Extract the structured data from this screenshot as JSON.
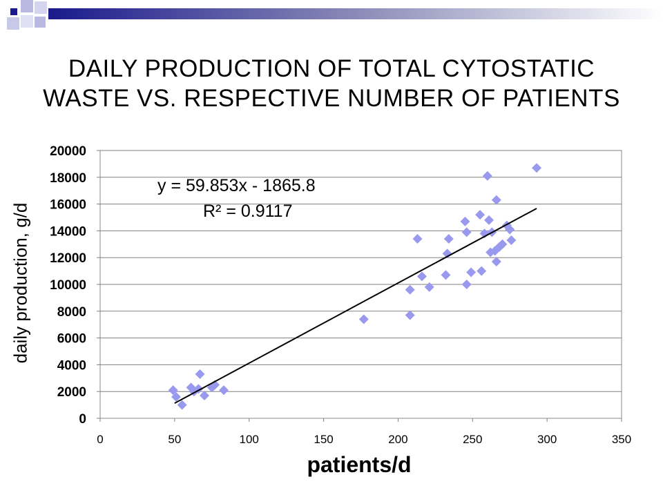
{
  "slide": {
    "title_line1": "DAILY PRODUCTION OF TOTAL CYTOSTATIC",
    "title_line2": "WASTE VS. RESPECTIVE NUMBER OF PATIENTS",
    "accent_color": "#1a1a8c"
  },
  "chart_data": {
    "type": "scatter",
    "title": "DAILY PRODUCTION OF TOTAL CYTOSTATIC WASTE VS. RESPECTIVE NUMBER OF PATIENTS",
    "xlabel": "patients/d",
    "ylabel": "daily production, g/d",
    "xlim": [
      0,
      350
    ],
    "ylim": [
      0,
      20000
    ],
    "x_ticks": [
      0,
      50,
      100,
      150,
      200,
      250,
      300,
      350
    ],
    "y_ticks": [
      0,
      2000,
      4000,
      6000,
      8000,
      10000,
      12000,
      14000,
      16000,
      18000,
      20000
    ],
    "horizontal_grid": true,
    "marker": "diamond",
    "marker_color": "#9999ee",
    "series": [
      {
        "points": [
          [
            49,
            2100
          ],
          [
            51,
            1600
          ],
          [
            55,
            1000
          ],
          [
            61,
            2300
          ],
          [
            63,
            2000
          ],
          [
            66,
            2200
          ],
          [
            67,
            3300
          ],
          [
            70,
            1700
          ],
          [
            75,
            2300
          ],
          [
            77,
            2500
          ],
          [
            83,
            2100
          ],
          [
            177,
            7400
          ],
          [
            208,
            7700
          ],
          [
            208,
            9600
          ],
          [
            213,
            13400
          ],
          [
            216,
            10600
          ],
          [
            221,
            9800
          ],
          [
            232,
            10700
          ],
          [
            233,
            12300
          ],
          [
            234,
            13400
          ],
          [
            245,
            14700
          ],
          [
            246,
            13900
          ],
          [
            246,
            10000
          ],
          [
            249,
            10900
          ],
          [
            255,
            15200
          ],
          [
            256,
            11000
          ],
          [
            258,
            13800
          ],
          [
            260,
            18100
          ],
          [
            261,
            14800
          ],
          [
            262,
            12400
          ],
          [
            263,
            13900
          ],
          [
            265,
            12500
          ],
          [
            266,
            11700
          ],
          [
            266,
            16300
          ],
          [
            268,
            12800
          ],
          [
            270,
            13000
          ],
          [
            273,
            14400
          ],
          [
            275,
            14100
          ],
          [
            276,
            13300
          ],
          [
            293,
            18700
          ]
        ]
      }
    ],
    "trendline": {
      "slope": 59.853,
      "intercept": -1865.8,
      "x_range": [
        50,
        293
      ],
      "equation": "y = 59.853x - 1865.8",
      "r2_label": "R² = 0.9117"
    }
  }
}
